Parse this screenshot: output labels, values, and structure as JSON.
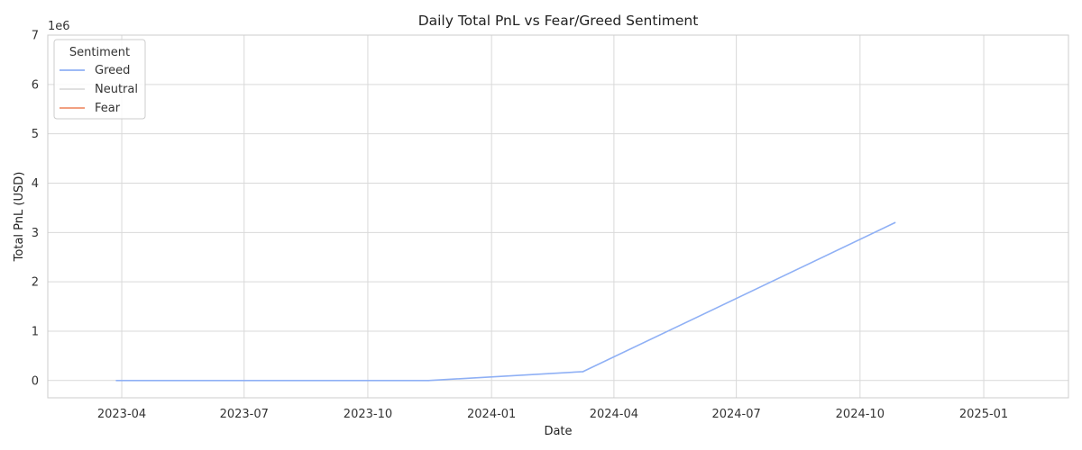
{
  "chart_data": {
    "type": "line",
    "title": "Daily Total PnL vs Fear/Greed Sentiment",
    "xlabel": "Date",
    "ylabel": "Total PnL (USD)",
    "y_offset_text": "1e6",
    "x_axis_type": "date",
    "xlim": [
      "2023-02-05",
      "2025-03-05"
    ],
    "ylim": [
      -0.35,
      7.0
    ],
    "y_unit_multiplier": 1000000,
    "x_ticks": [
      "2023-04-01",
      "2023-07-01",
      "2023-10-01",
      "2024-01-01",
      "2024-04-01",
      "2024-07-01",
      "2024-10-01",
      "2025-01-01"
    ],
    "x_tick_labels": [
      "2023-04",
      "2023-07",
      "2023-10",
      "2024-01",
      "2024-04",
      "2024-07",
      "2024-10",
      "2025-01"
    ],
    "y_ticks": [
      0,
      1,
      2,
      3,
      4,
      5,
      6,
      7
    ],
    "y_tick_labels": [
      "0",
      "1",
      "2",
      "3",
      "4",
      "5",
      "6",
      "7"
    ],
    "grid": true,
    "legend": {
      "title": "Sentiment",
      "placement": "top-left",
      "entries": [
        {
          "name": "Greed",
          "color": "#8fb0f5"
        },
        {
          "name": "Neutral",
          "color": "#dcdcdc"
        },
        {
          "name": "Fear",
          "color": "#f0926f"
        }
      ]
    },
    "series": [
      {
        "name": "Greed",
        "color": "#8fb0f5",
        "points": [
          {
            "x": "2023-03-28",
            "y": 0.0
          },
          {
            "x": "2023-11-15",
            "y": 0.0
          },
          {
            "x": "2024-03-09",
            "y": 0.18
          },
          {
            "x": "2024-10-27",
            "y": 3.2
          }
        ]
      },
      {
        "name": "Neutral",
        "color": "#dcdcdc",
        "points": []
      },
      {
        "name": "Fear",
        "color": "#f0926f",
        "points": []
      }
    ]
  }
}
